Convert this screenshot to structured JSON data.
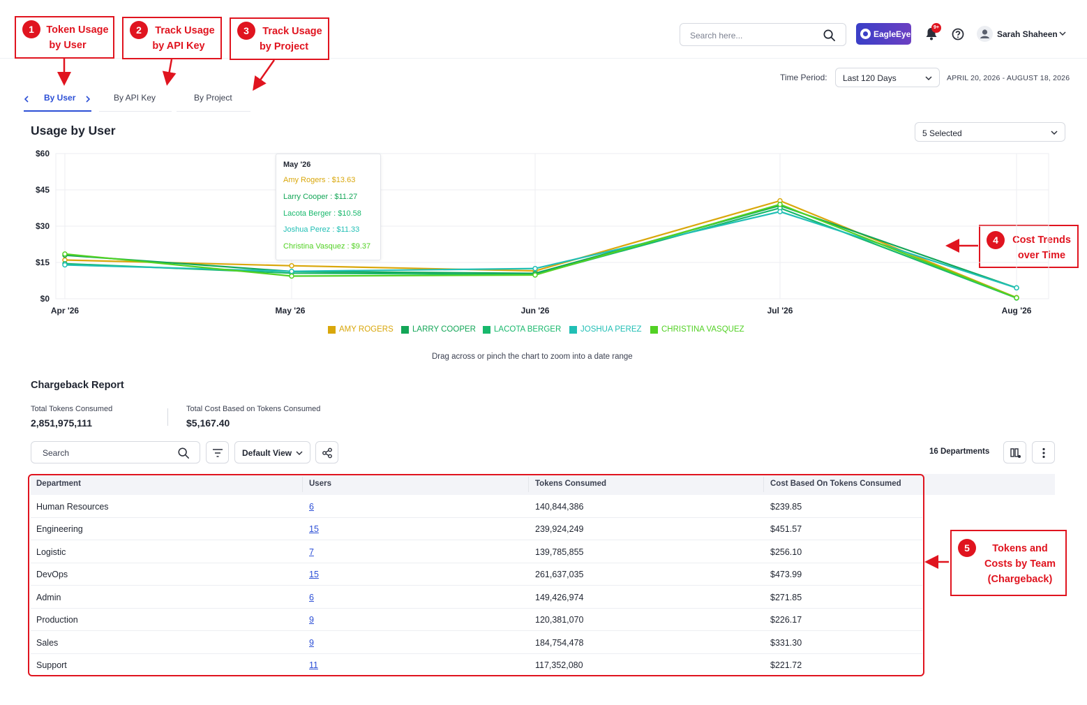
{
  "header": {
    "search_placeholder": "Search here...",
    "brand_label": "EagleEye",
    "notification_badge": "9+",
    "user_name": "Sarah Shaheen"
  },
  "annotations": [
    {
      "num": "1",
      "line1": "Token Usage",
      "line2": "by User"
    },
    {
      "num": "2",
      "line1": "Track Usage",
      "line2": "by API Key"
    },
    {
      "num": "3",
      "line1": "Track Usage",
      "line2": "by Project"
    },
    {
      "num": "4",
      "line1": "Cost Trends",
      "line2": "over Time"
    },
    {
      "num": "5",
      "line1": "Tokens and",
      "line2": "Costs by Team",
      "line3": "(Chargeback)"
    }
  ],
  "tabs": [
    {
      "label": "By User",
      "active": true
    },
    {
      "label": "By API Key",
      "active": false
    },
    {
      "label": "By Project",
      "active": false
    }
  ],
  "time_period": {
    "label": "Time Period:",
    "value": "Last 120 Days",
    "range": "APRIL 20, 2026 - AUGUST 18, 2026"
  },
  "usage": {
    "title": "Usage by User",
    "user_filter": "5 Selected",
    "hint": "Drag across or pinch the chart to zoom into a date range"
  },
  "chart_data": {
    "type": "line",
    "title": "Usage by User",
    "x": [
      "Apr '26",
      "May '26",
      "Jun '26",
      "Jul '26",
      "Aug '26"
    ],
    "y_ticks": [
      "$0",
      "$15",
      "$30",
      "$45",
      "$60"
    ],
    "ylim": [
      0,
      60
    ],
    "grid": true,
    "legend_position": "bottom",
    "series": [
      {
        "name": "AMY ROGERS",
        "color": "#d9a70b",
        "values": [
          16.0,
          13.63,
          11.5,
          40.5,
          0.5
        ]
      },
      {
        "name": "LARRY COOPER",
        "color": "#13a657",
        "values": [
          18.0,
          11.27,
          10.5,
          38.5,
          4.5
        ]
      },
      {
        "name": "LACOTA BERGER",
        "color": "#18b86c",
        "values": [
          14.5,
          10.58,
          10.0,
          37.5,
          0.3
        ]
      },
      {
        "name": "JOSHUA PEREZ",
        "color": "#21bfb5",
        "values": [
          14.0,
          11.33,
          12.5,
          36.0,
          4.5
        ]
      },
      {
        "name": "CHRISTINA VASQUEZ",
        "color": "#52d124",
        "values": [
          18.5,
          9.37,
          9.8,
          39.0,
          0.4
        ]
      }
    ],
    "tooltip": {
      "title": "May '26",
      "entries": [
        {
          "text": "Amy Rogers : $13.63",
          "color": "#d9a70b"
        },
        {
          "text": "Larry Cooper : $11.27",
          "color": "#13a657"
        },
        {
          "text": "Lacota Berger : $10.58",
          "color": "#18b86c"
        },
        {
          "text": "Joshua Perez : $11.33",
          "color": "#21bfb5"
        },
        {
          "text": "Christina Vasquez : $9.37",
          "color": "#52d124"
        }
      ]
    }
  },
  "chargeback": {
    "title": "Chargeback Report",
    "total_tokens_label": "Total Tokens Consumed",
    "total_tokens_value": "2,851,975,111",
    "total_cost_label": "Total Cost Based on Tokens Consumed",
    "total_cost_value": "$5,167.40",
    "search_placeholder": "Search",
    "view": "Default View",
    "departments_count": "16 Departments",
    "columns": [
      "Department",
      "Users",
      "Tokens Consumed",
      "Cost Based On Tokens Consumed"
    ],
    "rows": [
      [
        "Human Resources",
        "6",
        "140,844,386",
        "$239.85"
      ],
      [
        "Engineering",
        "15",
        "239,924,249",
        "$451.57"
      ],
      [
        "Logistic",
        "7",
        "139,785,855",
        "$256.10"
      ],
      [
        "DevOps",
        "15",
        "261,637,035",
        "$473.99"
      ],
      [
        "Admin",
        "6",
        "149,426,974",
        "$271.85"
      ],
      [
        "Production",
        "9",
        "120,381,070",
        "$226.17"
      ],
      [
        "Sales",
        "9",
        "184,754,478",
        "$331.30"
      ],
      [
        "Support",
        "11",
        "117,352,080",
        "$221.72"
      ]
    ]
  },
  "colors": {
    "accent": "#2c4fd6",
    "annotation_red": "#e0141f",
    "brand_gradient_start": "#3a3fc7",
    "brand_gradient_end": "#6b3fc2"
  }
}
